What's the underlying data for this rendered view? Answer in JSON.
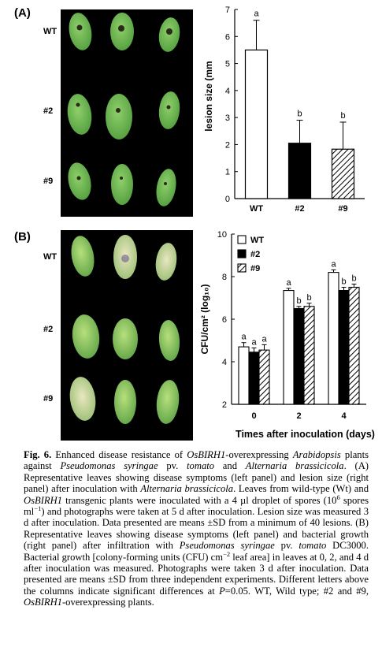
{
  "panel_a": {
    "label": "(A)",
    "rows": [
      "WT",
      "#2",
      "#9"
    ]
  },
  "panel_b": {
    "label": "(B)",
    "rows": [
      "WT",
      "#2",
      "#9"
    ]
  },
  "chart_data": [
    {
      "type": "bar",
      "categories": [
        "WT",
        "#2",
        "#9"
      ],
      "values": [
        5.5,
        2.05,
        1.83
      ],
      "errors": [
        1.1,
        0.85,
        1.0
      ],
      "letters": [
        "a",
        "b",
        "b"
      ],
      "fills": [
        "white",
        "black",
        "hatched"
      ],
      "ylabel": "lesion size (mm",
      "ylim": [
        0,
        7
      ],
      "yticks": [
        "0",
        "1",
        "2",
        "3",
        "4",
        "5",
        "6",
        "7"
      ],
      "grid": false
    },
    {
      "type": "bar",
      "categories": [
        "0",
        "2",
        "4"
      ],
      "series": [
        {
          "name": "WT",
          "fill": "white",
          "values": [
            4.7,
            7.35,
            8.2
          ],
          "errors": [
            0.2,
            0.1,
            0.12
          ],
          "letters": [
            "a",
            "a",
            "a"
          ]
        },
        {
          "name": "#2",
          "fill": "black",
          "values": [
            4.45,
            6.5,
            7.35
          ],
          "errors": [
            0.2,
            0.1,
            0.15
          ],
          "letters": [
            "a",
            "b",
            "b"
          ]
        },
        {
          "name": "#9",
          "fill": "hatched",
          "values": [
            4.55,
            6.6,
            7.5
          ],
          "errors": [
            0.25,
            0.15,
            0.15
          ],
          "letters": [
            "a",
            "b",
            "b"
          ]
        }
      ],
      "ylabel": "CFU/cm² (log₁₀)",
      "xlabel": "Times after inoculation (days)",
      "ylim": [
        2,
        10
      ],
      "yticks": [
        "2",
        "4",
        "6",
        "8",
        "10"
      ],
      "legend": "top-left",
      "grid": false
    }
  ],
  "caption": {
    "fig_label": "Fig. 6.",
    "text": [
      {
        "t": " Enhanced disease resistance of "
      },
      {
        "t": "OsBIRH1",
        "i": true
      },
      {
        "t": "-overexpressing "
      },
      {
        "t": "Arabidopsis",
        "i": true
      },
      {
        "t": " plants against "
      },
      {
        "t": "Pseudomonas syringae",
        "i": true
      },
      {
        "t": " pv. "
      },
      {
        "t": "tomato",
        "i": true
      },
      {
        "t": " and "
      },
      {
        "t": "Alternaria brassicicola",
        "i": true
      },
      {
        "t": ". (A) Representative leaves showing disease symptoms (left panel) and lesion size (right panel) after inoculation with "
      },
      {
        "t": "Alternaria brassicicola",
        "i": true
      },
      {
        "t": ". Leaves from wild-type (Wt) and "
      },
      {
        "t": "OsBIRH1",
        "i": true
      },
      {
        "t": " transgenic plants were inoculated with a 4 µl droplet of spores (10"
      },
      {
        "t": "6",
        "sup": true
      },
      {
        "t": " spores ml"
      },
      {
        "t": "−1",
        "sup": true
      },
      {
        "t": ") and photographs were taken at 5 d after inoculation. Lesion size was measured 3 d after inoculation. Data presented are means ±SD from a minimum of 40 lesions. (B) Representative leaves showing disease symptoms (left panel) and bacterial growth (right panel) after infiltration with "
      },
      {
        "t": "Pseudomonas syringae",
        "i": true
      },
      {
        "t": " pv. "
      },
      {
        "t": "tomato",
        "i": true
      },
      {
        "t": " DC3000. Bacterial growth [colony-forming units (CFU) cm"
      },
      {
        "t": "−2",
        "sup": true
      },
      {
        "t": " leaf area] in leaves at 0, 2, and 4 d after inoculation was measured. Photographs were taken 3 d after inoculation. Data presented are means ±SD from three independent experiments. Different letters above the columns indicate significant differences at "
      },
      {
        "t": "P",
        "i": true
      },
      {
        "t": "=0.05. WT, Wild type; #2 and #9, "
      },
      {
        "t": "OsBIRH1",
        "i": true
      },
      {
        "t": "-overexpressing plants."
      }
    ]
  }
}
